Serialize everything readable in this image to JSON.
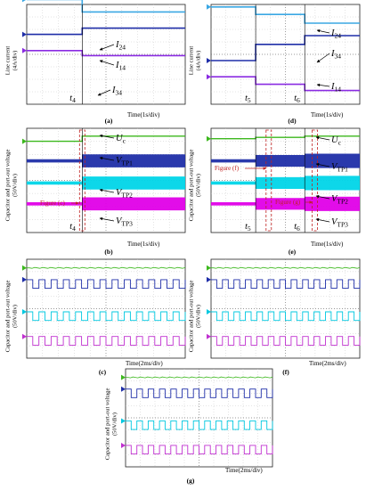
{
  "figure": {
    "panels": {
      "a": {
        "caption": "(a)",
        "y_label": "Line current\n(4A/div)",
        "time_label": "Time(1s/div)",
        "markers": [
          "t4"
        ],
        "traces": [
          "I24",
          "I14",
          "I34"
        ]
      },
      "b": {
        "caption": "(b)",
        "y_label": "Capacitor and port-out voltage\n(50V/div)",
        "time_label": "Time(1s/div)",
        "markers": [
          "t4"
        ],
        "traces": [
          "Uc",
          "VTP1",
          "VTP2",
          "VTP3"
        ],
        "annotations": [
          "Figure (c)"
        ]
      },
      "c": {
        "caption": "(c)",
        "y_label": "Capacitor and port-out voltage\n(50V/div)",
        "time_label": "Time(2ms/div)"
      },
      "d": {
        "caption": "(d)",
        "y_label": "Line current\n(4A/div)",
        "time_label": "Time(1s/div)",
        "markers": [
          "t5",
          "t6"
        ],
        "traces": [
          "I24",
          "I34",
          "I14"
        ]
      },
      "e": {
        "caption": "(e)",
        "y_label": "Capacitor and port-out voltage\n(50V/div)",
        "time_label": "Time(1s/div)",
        "markers": [
          "t5",
          "t6"
        ],
        "traces": [
          "Uc",
          "VTP1",
          "VTP2",
          "VTP3"
        ],
        "annotations": [
          "Figure (f)",
          "Figure (g)"
        ]
      },
      "f": {
        "caption": "(f)",
        "y_label": "Capacitor and port-out voltage\n(50V/div)",
        "time_label": "Time(2ms/div)"
      },
      "g": {
        "caption": "(g)",
        "y_label": "Capacitor and port-out voltage\n(50V/div)",
        "time_label": "Time(2ms/div)"
      }
    }
  },
  "chart_data": [
    {
      "type": "line",
      "panel": "a",
      "title": "",
      "xlabel": "Time(1s/div)",
      "ylabel": "Line current (4A/div)",
      "x": [
        "before t4",
        "after t4"
      ],
      "series": [
        {
          "name": "I24",
          "color": "#3aa7e3",
          "values": [
            4.4,
            3.4
          ]
        },
        {
          "name": "I14",
          "color": "#1f2ea8",
          "values": [
            1.6,
            2.1
          ]
        },
        {
          "name": "I34",
          "color": "#8a2be2",
          "values": [
            0.3,
            -0.1
          ]
        }
      ]
    },
    {
      "type": "line",
      "panel": "b",
      "title": "",
      "xlabel": "Time(1s/div)",
      "ylabel": "Capacitor and port-out voltage (50V/div)",
      "x": [
        "before t4",
        "after t4"
      ],
      "series": [
        {
          "name": "Uc",
          "color": "#3cb81d",
          "values": [
            3.0,
            3.4
          ]
        },
        {
          "name": "VTP1",
          "color": "#1f2ea8",
          "values": [
            1.5,
            1.5
          ]
        },
        {
          "name": "VTP2",
          "color": "#00d5e8",
          "values": [
            -0.2,
            -0.2
          ]
        },
        {
          "name": "VTP3",
          "color": "#e000e8",
          "values": [
            -1.8,
            -1.8
          ]
        }
      ]
    },
    {
      "type": "line",
      "panel": "d",
      "title": "",
      "xlabel": "Time(1s/div)",
      "ylabel": "Line current (4A/div)",
      "x": [
        "before t5",
        "t5 to t6",
        "after t6"
      ],
      "series": [
        {
          "name": "I24",
          "color": "#3aa7e3",
          "values": [
            3.8,
            3.2,
            2.5
          ]
        },
        {
          "name": "I34",
          "color": "#1f2ea8",
          "values": [
            -0.5,
            0.8,
            1.5
          ]
        },
        {
          "name": "I14",
          "color": "#8a2be2",
          "values": [
            -1.8,
            -2.4,
            -2.9
          ]
        }
      ]
    },
    {
      "type": "line",
      "panel": "e",
      "title": "",
      "xlabel": "Time(1s/div)",
      "ylabel": "Capacitor and port-out voltage (50V/div)",
      "x": [
        "before t5",
        "t5 to t6",
        "after t6"
      ],
      "series": [
        {
          "name": "Uc",
          "color": "#3cb81d",
          "values": [
            3.2,
            3.3,
            3.4
          ]
        },
        {
          "name": "VTP1",
          "color": "#1f2ea8",
          "values": [
            1.5,
            1.5,
            1.5
          ]
        },
        {
          "name": "VTP2",
          "color": "#00d5e8",
          "values": [
            -0.2,
            -0.2,
            -0.2
          ]
        },
        {
          "name": "VTP3",
          "color": "#e000e8",
          "values": [
            -1.8,
            -1.8,
            -1.8
          ]
        }
      ]
    }
  ]
}
